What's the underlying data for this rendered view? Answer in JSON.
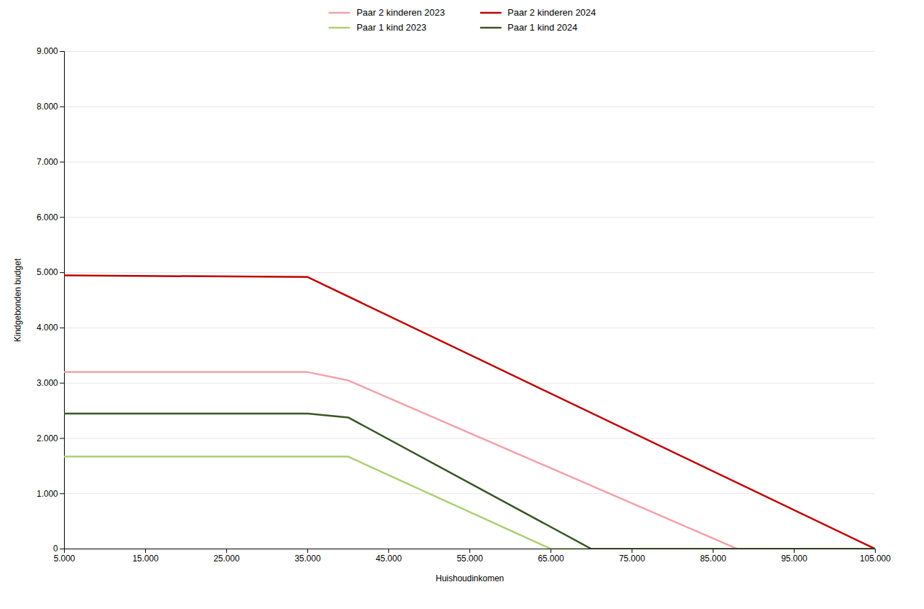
{
  "chart_data": {
    "type": "line",
    "xlabel": "Huishoudinkomen",
    "ylabel": "Kindgebonden budget",
    "series": [
      {
        "name": "Paar 2 kinderen 2023",
        "color": "#F4A0A8",
        "x": [
          5000,
          35000,
          40000,
          88000,
          105000
        ],
        "values": [
          3200,
          3200,
          3050,
          0,
          0
        ]
      },
      {
        "name": "Paar 2 kinderen 2024",
        "color": "#C00000",
        "x": [
          5000,
          35000,
          105000
        ],
        "values": [
          4950,
          4920,
          0
        ]
      },
      {
        "name": "Paar 1 kind 2023",
        "color": "#AACF72",
        "x": [
          5000,
          35000,
          40000,
          65000,
          105000
        ],
        "values": [
          1670,
          1670,
          1670,
          0,
          0
        ]
      },
      {
        "name": "Paar 1 kind 2024",
        "color": "#375623",
        "x": [
          5000,
          35000,
          40000,
          70000,
          105000
        ],
        "values": [
          2450,
          2450,
          2380,
          0,
          0
        ]
      }
    ],
    "xlim": [
      5000,
      105000
    ],
    "ylim": [
      0,
      9000
    ],
    "xticks": [
      {
        "value": 5000,
        "label": "5.000"
      },
      {
        "value": 15000,
        "label": "15.000"
      },
      {
        "value": 25000,
        "label": "25.000"
      },
      {
        "value": 35000,
        "label": "35.000"
      },
      {
        "value": 45000,
        "label": "45.000"
      },
      {
        "value": 55000,
        "label": "55.000"
      },
      {
        "value": 65000,
        "label": "65.000"
      },
      {
        "value": 75000,
        "label": "75.000"
      },
      {
        "value": 85000,
        "label": "85.000"
      },
      {
        "value": 95000,
        "label": "95.000"
      },
      {
        "value": 105000,
        "label": "105.000"
      }
    ],
    "yticks": [
      0,
      {
        "value": 1000,
        "label": "1.000"
      },
      {
        "value": 2000,
        "label": "2.000"
      },
      {
        "value": 3000,
        "label": "3.000"
      },
      {
        "value": 4000,
        "label": "4.000"
      },
      {
        "value": 5000,
        "label": "5.000"
      },
      {
        "value": 6000,
        "label": "6.000"
      },
      {
        "value": 7000,
        "label": "7.000"
      },
      {
        "value": 8000,
        "label": "8.000"
      },
      {
        "value": 9000,
        "label": "9.000"
      }
    ],
    "grid": "y",
    "legend": "top"
  }
}
